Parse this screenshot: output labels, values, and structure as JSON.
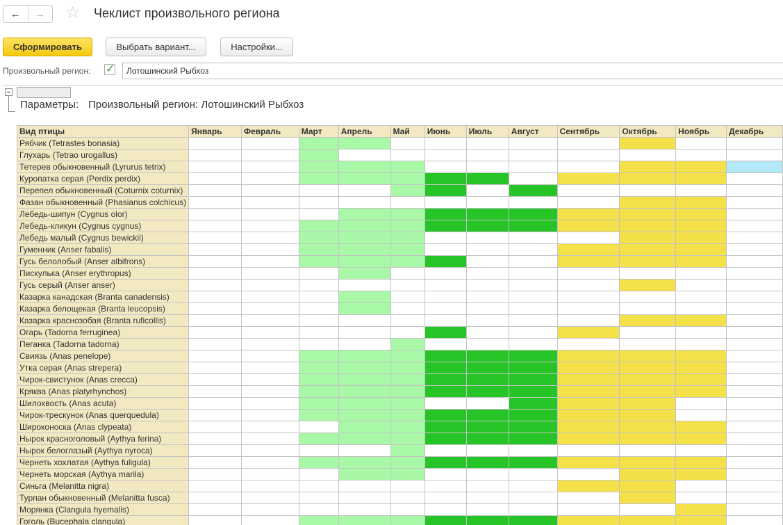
{
  "window": {
    "title": "Чеклист произвольного региона",
    "nav_back": "←",
    "nav_forward": "→",
    "favorite_star": "☆"
  },
  "toolbar": {
    "generate_label": "Сформировать",
    "choose_variant_label": "Выбрать вариант...",
    "settings_label": "Настройки..."
  },
  "region": {
    "label": "Произвольный регион:",
    "checked": true,
    "value": "Лотошинский Рыбхоз"
  },
  "report": {
    "params_label": "Параметры:",
    "params_value": "Произвольный регион: Лотошинский Рыбхоз"
  },
  "legend_colors": {
    "0": "#ffffff",
    "1": "#a8f8a8",
    "2": "#27c427",
    "3": "#f4e14a",
    "4": "#b3e8f8"
  },
  "table": {
    "columns": [
      "Вид птицы",
      "Январь",
      "Февраль",
      "Март",
      "Апрель",
      "Май",
      "Июнь",
      "Июль",
      "Август",
      "Сентябрь",
      "Октябрь",
      "Ноябрь",
      "Декабрь"
    ],
    "rows": [
      {
        "name": "Рябчик (Tetrastes bonasia)",
        "m": [
          0,
          0,
          1,
          1,
          0,
          0,
          0,
          0,
          0,
          3,
          0,
          0
        ]
      },
      {
        "name": "Глухарь (Tetrao urogallus)",
        "m": [
          0,
          0,
          1,
          0,
          0,
          0,
          0,
          0,
          0,
          0,
          0,
          0
        ]
      },
      {
        "name": "Тетерев обыкновенный (Lyrurus tetrix)",
        "m": [
          0,
          0,
          1,
          1,
          1,
          0,
          0,
          0,
          0,
          3,
          3,
          4
        ]
      },
      {
        "name": "Куропатка серая (Perdix perdix)",
        "m": [
          0,
          0,
          1,
          1,
          1,
          2,
          2,
          0,
          3,
          3,
          3,
          0
        ]
      },
      {
        "name": "Перепел обыкновенный (Coturnix coturnix)",
        "m": [
          0,
          0,
          0,
          0,
          1,
          2,
          0,
          2,
          0,
          0,
          0,
          0
        ]
      },
      {
        "name": "Фазан обыкновенный (Phasianus colchicus)",
        "m": [
          0,
          0,
          0,
          0,
          0,
          0,
          0,
          0,
          0,
          3,
          3,
          0
        ]
      },
      {
        "name": "Лебедь-шипун (Cygnus olor)",
        "m": [
          0,
          0,
          0,
          1,
          1,
          2,
          2,
          2,
          3,
          3,
          3,
          0
        ]
      },
      {
        "name": "Лебедь-кликун (Cygnus cygnus)",
        "m": [
          0,
          0,
          1,
          1,
          1,
          2,
          2,
          2,
          3,
          3,
          3,
          0
        ]
      },
      {
        "name": "Лебедь малый (Cygnus bewickii)",
        "m": [
          0,
          0,
          1,
          1,
          1,
          0,
          0,
          0,
          0,
          3,
          3,
          0
        ]
      },
      {
        "name": "Гуменник (Anser fabalis)",
        "m": [
          0,
          0,
          1,
          1,
          1,
          0,
          0,
          0,
          3,
          3,
          3,
          0
        ]
      },
      {
        "name": "Гусь белолобый (Anser albifrons)",
        "m": [
          0,
          0,
          1,
          1,
          1,
          2,
          0,
          0,
          3,
          3,
          3,
          0
        ]
      },
      {
        "name": "Пискулька (Anser erythropus)",
        "m": [
          0,
          0,
          0,
          1,
          0,
          0,
          0,
          0,
          0,
          0,
          0,
          0
        ]
      },
      {
        "name": "Гусь серый (Anser anser)",
        "m": [
          0,
          0,
          0,
          0,
          0,
          0,
          0,
          0,
          0,
          3,
          0,
          0
        ]
      },
      {
        "name": "Казарка канадская (Branta canadensis)",
        "m": [
          0,
          0,
          0,
          1,
          0,
          0,
          0,
          0,
          0,
          0,
          0,
          0
        ]
      },
      {
        "name": "Казарка белощекая (Branta leucopsis)",
        "m": [
          0,
          0,
          0,
          1,
          0,
          0,
          0,
          0,
          0,
          0,
          0,
          0
        ]
      },
      {
        "name": "Казарка краснозобая (Branta ruficollis)",
        "m": [
          0,
          0,
          0,
          0,
          0,
          0,
          0,
          0,
          0,
          3,
          3,
          0
        ]
      },
      {
        "name": "Огарь (Tadorna ferruginea)",
        "m": [
          0,
          0,
          0,
          0,
          0,
          2,
          0,
          0,
          3,
          0,
          0,
          0
        ]
      },
      {
        "name": "Пеганка (Tadorna tadorna)",
        "m": [
          0,
          0,
          0,
          0,
          1,
          0,
          0,
          0,
          0,
          0,
          0,
          0
        ]
      },
      {
        "name": "Свиязь (Anas penelope)",
        "m": [
          0,
          0,
          1,
          1,
          1,
          2,
          2,
          2,
          3,
          3,
          3,
          0
        ]
      },
      {
        "name": "Утка серая (Anas strepera)",
        "m": [
          0,
          0,
          1,
          1,
          1,
          2,
          2,
          2,
          3,
          3,
          3,
          0
        ]
      },
      {
        "name": "Чирок-свистунок (Anas crecca)",
        "m": [
          0,
          0,
          1,
          1,
          1,
          2,
          2,
          2,
          3,
          3,
          3,
          0
        ]
      },
      {
        "name": "Кряква (Anas platyrhynchos)",
        "m": [
          0,
          0,
          1,
          1,
          1,
          2,
          2,
          2,
          3,
          3,
          3,
          0
        ]
      },
      {
        "name": "Шилохвость (Anas acuta)",
        "m": [
          0,
          0,
          1,
          1,
          1,
          0,
          0,
          2,
          3,
          3,
          0,
          0
        ]
      },
      {
        "name": "Чирок-трескунок (Anas querquedula)",
        "m": [
          0,
          0,
          1,
          1,
          1,
          2,
          2,
          2,
          3,
          3,
          0,
          0
        ]
      },
      {
        "name": "Широконоска (Anas clypeata)",
        "m": [
          0,
          0,
          0,
          1,
          1,
          2,
          2,
          2,
          3,
          3,
          3,
          0
        ]
      },
      {
        "name": "Нырок красноголовый (Aythya ferina)",
        "m": [
          0,
          0,
          1,
          1,
          1,
          2,
          2,
          2,
          3,
          3,
          3,
          0
        ]
      },
      {
        "name": "Нырок белоглазый (Aythya nyroca)",
        "m": [
          0,
          0,
          0,
          0,
          1,
          0,
          0,
          0,
          0,
          0,
          0,
          0
        ]
      },
      {
        "name": "Чернеть хохлатая (Aythya fuligula)",
        "m": [
          0,
          0,
          1,
          1,
          1,
          2,
          2,
          2,
          3,
          3,
          3,
          0
        ]
      },
      {
        "name": "Чернеть морская (Aythya marila)",
        "m": [
          0,
          0,
          0,
          1,
          1,
          0,
          0,
          0,
          0,
          3,
          3,
          0
        ]
      },
      {
        "name": "Синьга (Melanitta nigra)",
        "m": [
          0,
          0,
          0,
          0,
          0,
          0,
          0,
          0,
          3,
          3,
          0,
          0
        ]
      },
      {
        "name": "Турпан обыкновенный (Melanitta fusca)",
        "m": [
          0,
          0,
          0,
          0,
          0,
          0,
          0,
          0,
          0,
          3,
          0,
          0
        ]
      },
      {
        "name": "Морянка (Clangula hyemalis)",
        "m": [
          0,
          0,
          0,
          0,
          0,
          0,
          0,
          0,
          0,
          0,
          3,
          0
        ]
      },
      {
        "name": "Гоголь (Bucephala clangula)",
        "m": [
          0,
          0,
          1,
          1,
          1,
          2,
          2,
          2,
          3,
          3,
          3,
          0
        ]
      }
    ]
  }
}
